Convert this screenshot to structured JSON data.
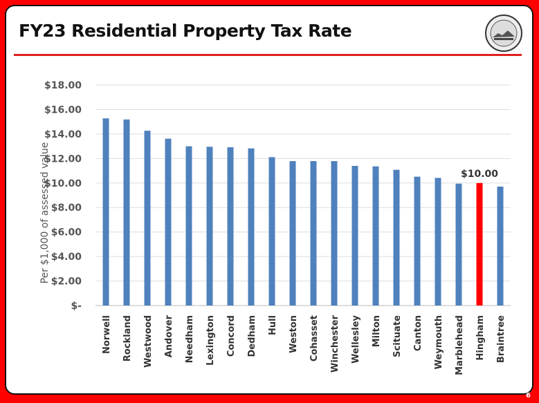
{
  "slide": {
    "title": "FY23 Residential Property Tax Rate",
    "page_number": "6",
    "logo": "town seal"
  },
  "colors": {
    "bar": "#4f81bd",
    "highlight": "#ff0000",
    "frame": "#ff0000"
  },
  "chart_data": {
    "type": "bar",
    "title": "",
    "xlabel": "",
    "ylabel": "Per $1,000 of assessed value",
    "categories": [
      "Norwell",
      "Rockland",
      "Westwood",
      "Andover",
      "Needham",
      "Lexington",
      "Concord",
      "Dedham",
      "Hull",
      "Weston",
      "Cohasset",
      "Winchester",
      "Wellesley",
      "Milton",
      "Scituate",
      "Canton",
      "Weymouth",
      "Marblehead",
      "Hingham",
      "Braintree"
    ],
    "values": [
      15.28,
      15.19,
      14.27,
      13.62,
      13.0,
      12.96,
      12.92,
      12.83,
      12.11,
      11.79,
      11.79,
      11.79,
      11.4,
      11.36,
      11.08,
      10.52,
      10.42,
      9.95,
      10.0,
      9.71
    ],
    "highlight": "Hingham",
    "data_labels": [
      {
        "category": "Hingham",
        "text": "$10.00"
      }
    ],
    "ylim": [
      0,
      18
    ],
    "yticks": [
      {
        "v": 0,
        "t": "$-"
      },
      {
        "v": 2,
        "t": "$2.00"
      },
      {
        "v": 4,
        "t": "$4.00"
      },
      {
        "v": 6,
        "t": "$6.00"
      },
      {
        "v": 8,
        "t": "$8.00"
      },
      {
        "v": 10,
        "t": "$10.00"
      },
      {
        "v": 12,
        "t": "$12.00"
      },
      {
        "v": 14,
        "t": "$14.00"
      },
      {
        "v": 16,
        "t": "$16.00"
      },
      {
        "v": 18,
        "t": "$18.00"
      }
    ],
    "grid": true,
    "legend": "none"
  }
}
